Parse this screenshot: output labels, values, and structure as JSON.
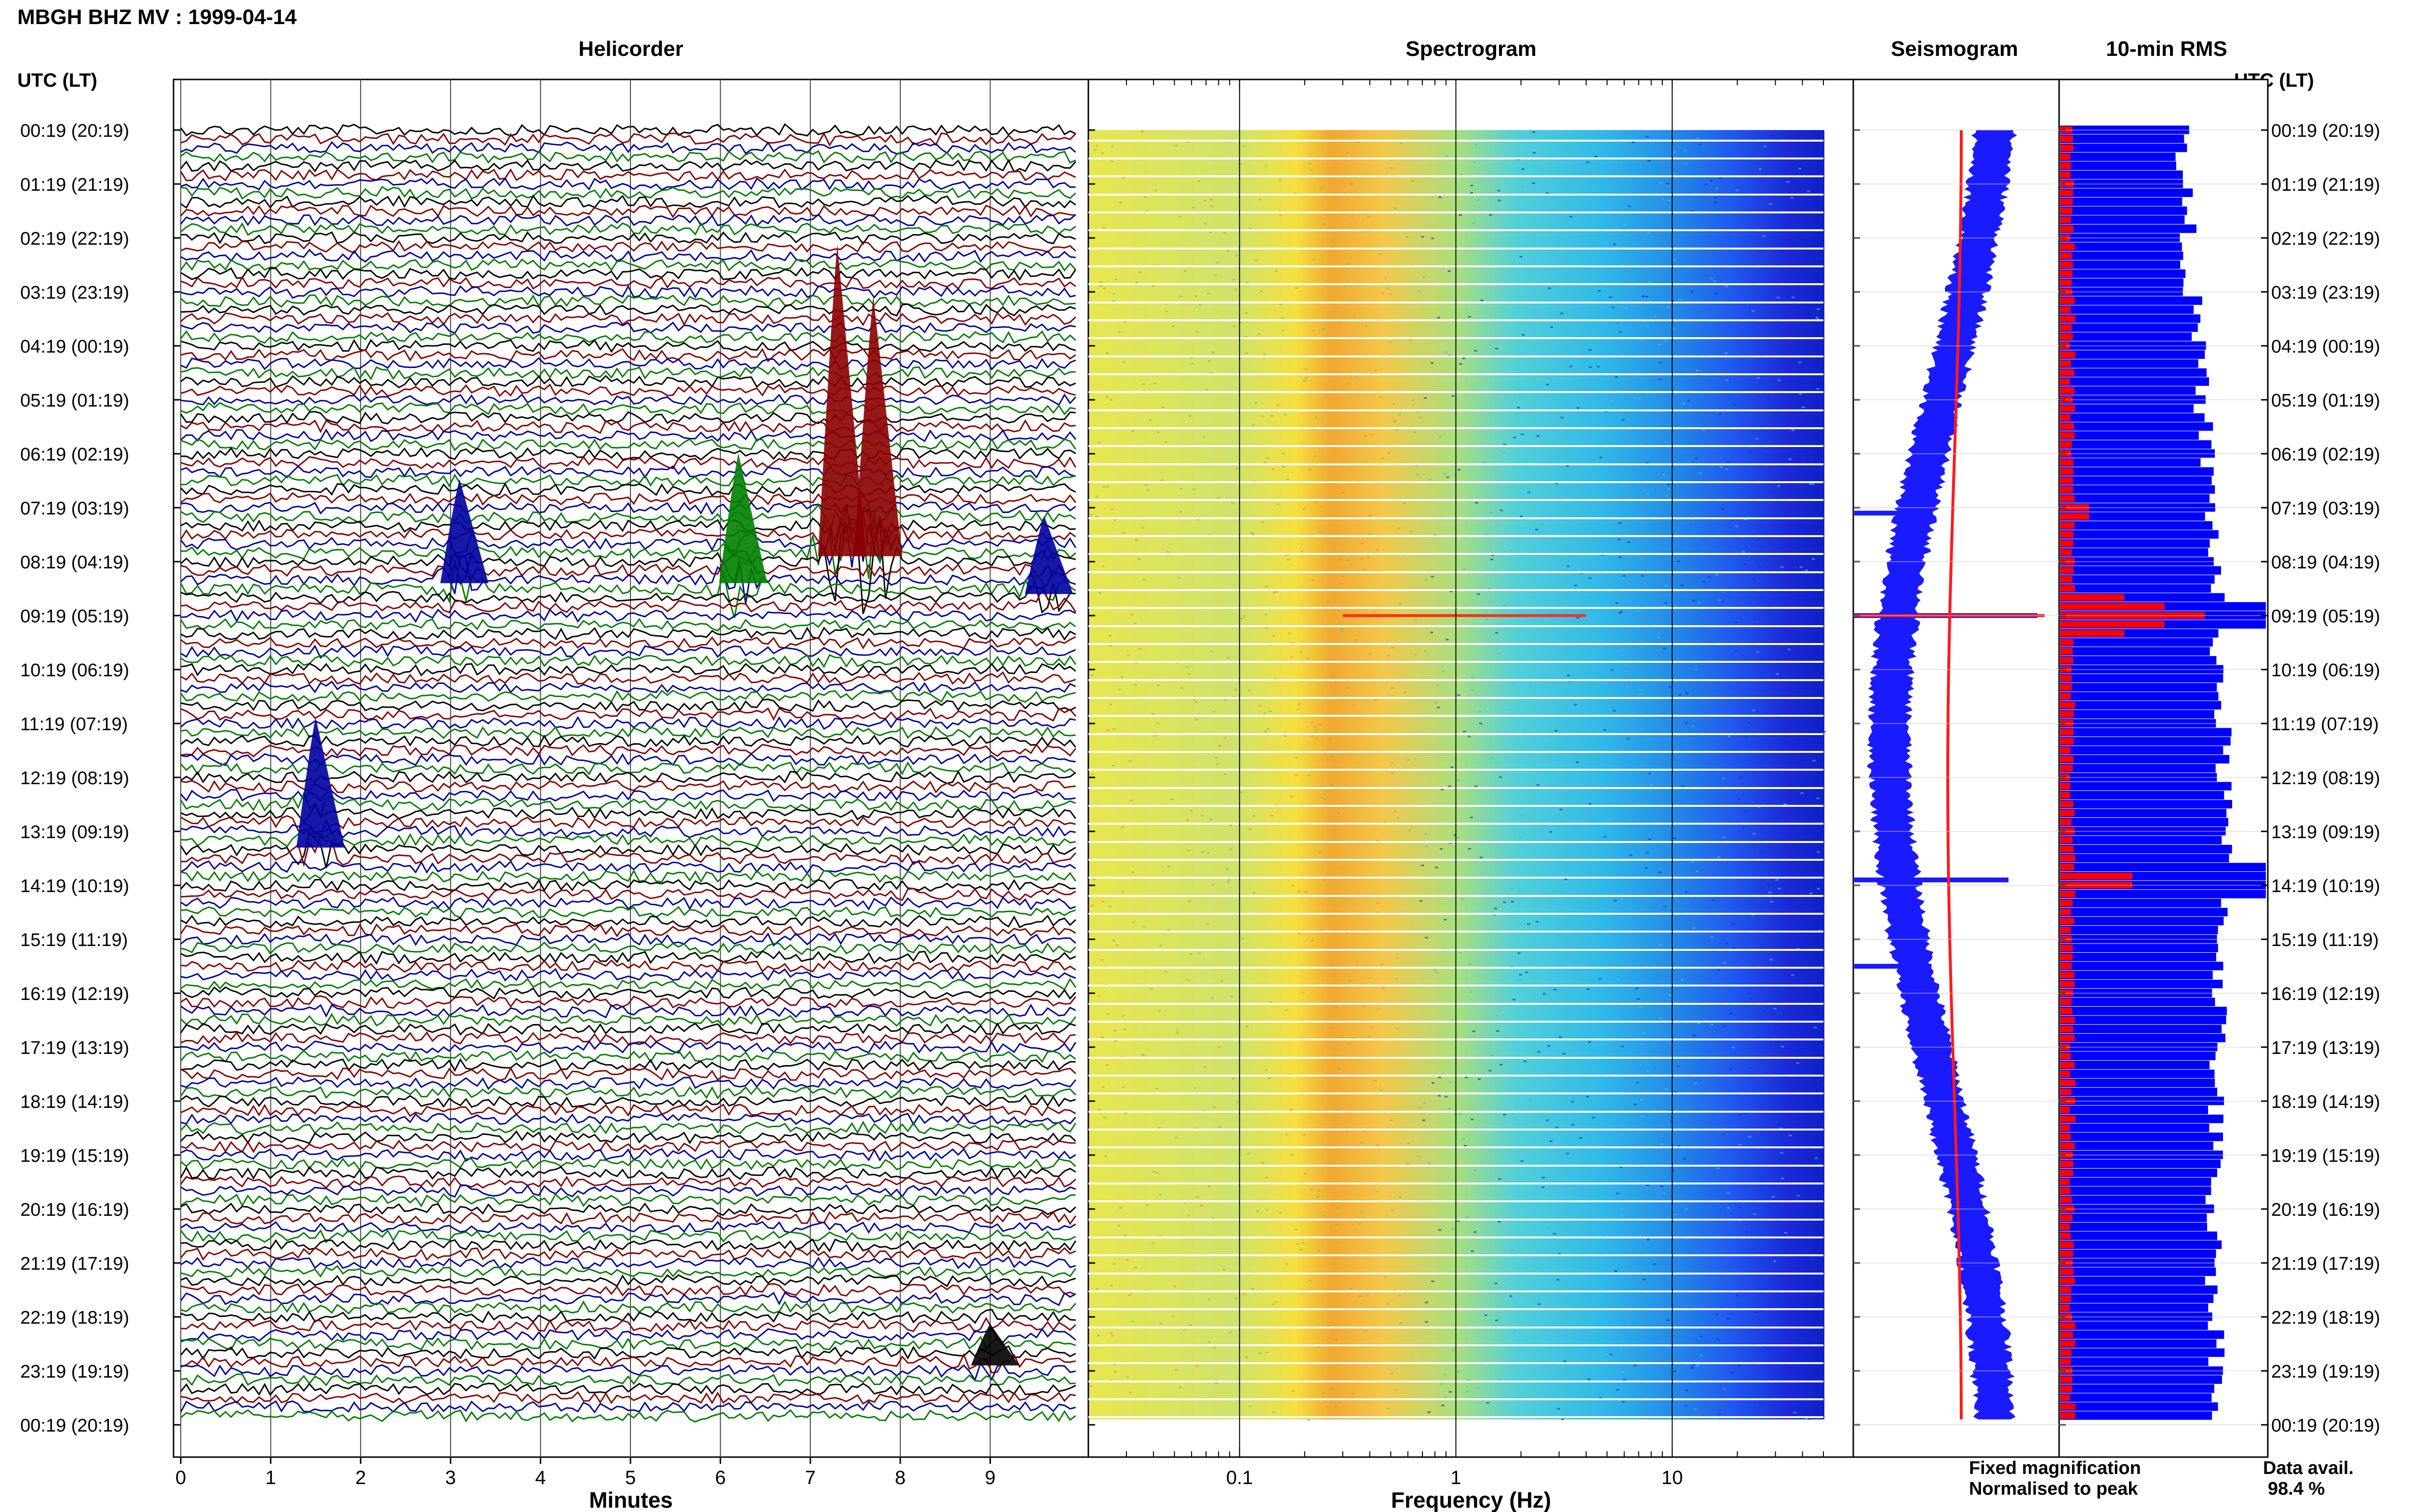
{
  "header": {
    "title": "MBGH BHZ MV : 1999-04-14",
    "utc_label": "UTC (LT)"
  },
  "panels": {
    "helicorder": "Helicorder",
    "spectrogram": "Spectrogram",
    "seismogram": "Seismogram",
    "rms": "10-min RMS"
  },
  "axes": {
    "minutes_label": "Minutes",
    "frequency_label": "Frequency (Hz)"
  },
  "legend": {
    "fixed": "Fixed magnification",
    "normalised": "Normalised to peak",
    "fixed_color": "#1a1aff",
    "normalised_color": "#ff1a1a"
  },
  "availability": {
    "label": "Data avail.",
    "value": "98.4 %"
  },
  "colors": {
    "trace_cycle": [
      "#000000",
      "#8b0000",
      "#0000a0",
      "#008000"
    ],
    "rms_blue": "#0000ff",
    "rms_red": "#ff0000"
  },
  "chart_data": [
    {
      "type": "line",
      "title": "Helicorder",
      "xlabel": "Minutes",
      "x_ticks": [
        "0",
        "1",
        "2",
        "3",
        "4",
        "5",
        "6",
        "7",
        "8",
        "9"
      ],
      "xlim": [
        0,
        10
      ],
      "hour_labels": [
        "00:19 (20:19)",
        "01:19 (21:19)",
        "02:19 (22:19)",
        "03:19 (23:19)",
        "04:19 (00:19)",
        "05:19 (01:19)",
        "06:19 (02:19)",
        "07:19 (03:19)",
        "08:19 (04:19)",
        "09:19 (05:19)",
        "10:19 (06:19)",
        "11:19 (07:19)",
        "12:19 (08:19)",
        "13:19 (09:19)",
        "14:19 (10:19)",
        "15:19 (11:19)",
        "16:19 (12:19)",
        "17:19 (13:19)",
        "18:19 (14:19)",
        "19:19 (15:19)",
        "20:19 (16:19)",
        "21:19 (17:19)",
        "22:19 (18:19)",
        "23:19 (19:19)",
        "00:19 (20:19)"
      ],
      "rows_per_hour": 6,
      "events": [
        {
          "hour": 7.9,
          "minute": 7.3,
          "amplitude": 6,
          "color": "#8b0000"
        },
        {
          "hour": 7.9,
          "minute": 7.7,
          "amplitude": 5,
          "color": "#8b0000"
        },
        {
          "hour": 8.4,
          "minute": 6.2,
          "amplitude": 2.5,
          "color": "#008000"
        },
        {
          "hour": 8.4,
          "minute": 3.1,
          "amplitude": 2,
          "color": "#0000a0"
        },
        {
          "hour": 8.6,
          "minute": 9.6,
          "amplitude": 1.5,
          "color": "#0000a0"
        },
        {
          "hour": 13.3,
          "minute": 1.5,
          "amplitude": 2.5,
          "color": "#0000a0"
        },
        {
          "hour": 22.9,
          "minute": 9.0,
          "amplitude": 0.8,
          "color": "#000000"
        }
      ]
    },
    {
      "type": "heatmap",
      "title": "Spectrogram",
      "xlabel": "Frequency (Hz)",
      "x_scale": "log",
      "x_ticks": [
        "0.1",
        "1",
        "10"
      ],
      "xlim": [
        0.02,
        50
      ],
      "peak_band_hz": [
        0.2,
        0.4
      ],
      "rolloff_hz": [
        8,
        35
      ]
    },
    {
      "type": "line",
      "title": "Seismogram",
      "series": [
        {
          "name": "Fixed magnification",
          "color": "#1a1aff"
        },
        {
          "name": "Normalised to peak",
          "color": "#ff1a1a"
        }
      ]
    },
    {
      "type": "bar",
      "title": "10-min RMS",
      "hours": 24,
      "bins_per_hour": 6
    }
  ]
}
